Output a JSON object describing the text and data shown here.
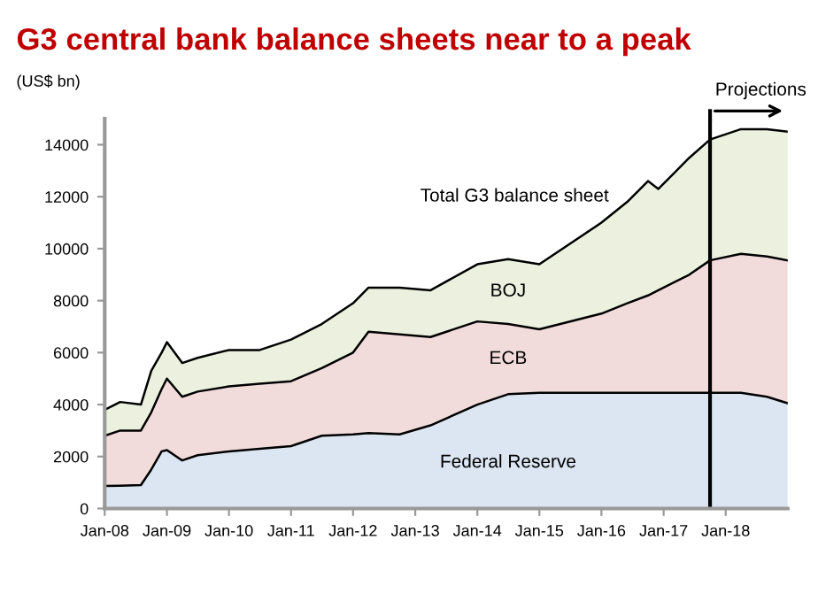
{
  "chart_data": {
    "type": "area",
    "stacked": true,
    "title": "G3 central bank balance sheets near to a peak",
    "ylabel": "(US$ bn)",
    "x": [
      "2008-01",
      "2008-04",
      "2008-08",
      "2008-10",
      "2008-12",
      "2009-01",
      "2009-04",
      "2009-07",
      "2010-01",
      "2010-07",
      "2011-01",
      "2011-07",
      "2012-01",
      "2012-04",
      "2012-10",
      "2013-04",
      "2014-01",
      "2014-07",
      "2015-01",
      "2016-01",
      "2016-06",
      "2016-10",
      "2016-12",
      "2017-06",
      "2017-10",
      "2018-04",
      "2018-09",
      "2019-01"
    ],
    "series": [
      {
        "name": "Federal Reserve",
        "color": "#dce6f2",
        "values": [
          870,
          880,
          900,
          1500,
          2200,
          2250,
          1850,
          2050,
          2200,
          2300,
          2400,
          2800,
          2850,
          2900,
          2850,
          3200,
          4000,
          4400,
          4450,
          4450,
          4450,
          4450,
          4450,
          4450,
          4450,
          4450,
          4300,
          4050
        ]
      },
      {
        "name": "ECB",
        "color": "#f2dcdb",
        "values": [
          1930,
          2120,
          2100,
          2200,
          2400,
          2750,
          2450,
          2450,
          2500,
          2500,
          2500,
          2600,
          3150,
          3900,
          3850,
          3400,
          3200,
          2700,
          2450,
          3050,
          3450,
          3750,
          3950,
          4550,
          5100,
          5350,
          5400,
          5500
        ]
      },
      {
        "name": "BOJ",
        "color": "#ebf1de",
        "values": [
          1000,
          1100,
          1000,
          1600,
          1400,
          1400,
          1300,
          1300,
          1400,
          1300,
          1600,
          1700,
          1900,
          1700,
          1800,
          1800,
          2200,
          2500,
          2500,
          3500,
          3900,
          4400,
          3900,
          4500,
          4650,
          4800,
          4900,
          4950
        ]
      }
    ],
    "annotations": [
      "Total G3 balance sheet"
    ],
    "ref_lines": [
      {
        "axis": "x",
        "value": "2017-10",
        "label": "Projections",
        "color": "#000000"
      }
    ],
    "xlim": [
      "2008-01",
      "2019-01"
    ],
    "xticks": [
      {
        "value": "2008-01",
        "label": "Jan-08"
      },
      {
        "value": "2009-01",
        "label": "Jan-09"
      },
      {
        "value": "2010-01",
        "label": "Jan-10"
      },
      {
        "value": "2011-01",
        "label": "Jan-11"
      },
      {
        "value": "2012-01",
        "label": "Jan-12"
      },
      {
        "value": "2013-01",
        "label": "Jan-13"
      },
      {
        "value": "2014-01",
        "label": "Jan-14"
      },
      {
        "value": "2015-01",
        "label": "Jan-15"
      },
      {
        "value": "2016-01",
        "label": "Jan-16"
      },
      {
        "value": "2017-01",
        "label": "Jan-17"
      },
      {
        "value": "2018-01",
        "label": "Jan-18"
      }
    ],
    "ylim": [
      0,
      15000
    ],
    "yticks": [
      0,
      2000,
      4000,
      6000,
      8000,
      10000,
      12000,
      14000
    ],
    "grid": false,
    "legend": false
  }
}
